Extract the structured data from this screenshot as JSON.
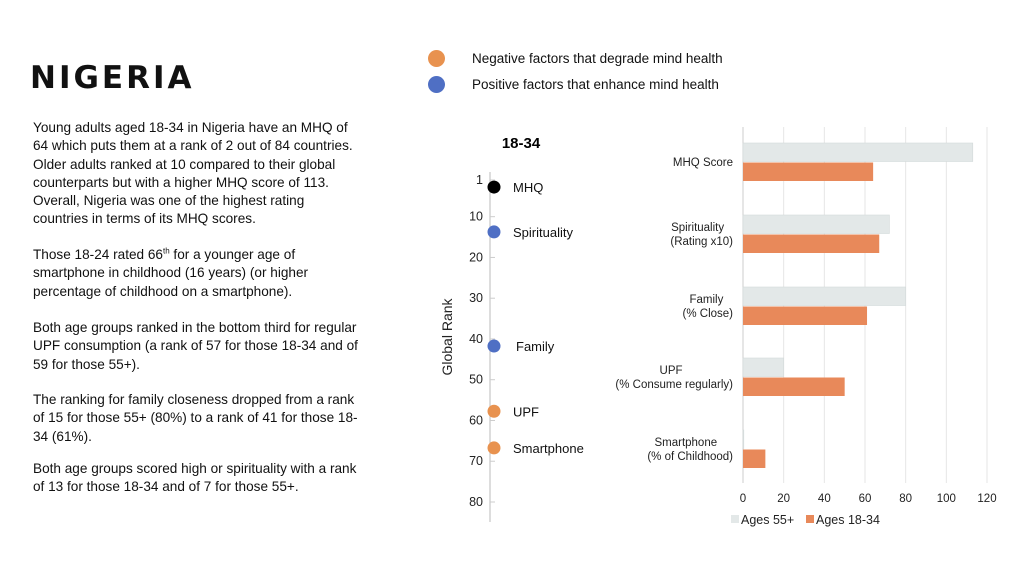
{
  "title": "NIGERIA",
  "paragraphs": [
    {
      "lines": [
        "Young adults aged 18-34 in Nigeria have an MHQ of",
        "64 which puts them at a rank of 2 out of 84 countries.",
        "Older adults ranked at 10 compared to their global",
        "counterparts but with a higher MHQ score of 113.",
        "Overall, Nigeria was one of the highest rating",
        "countries in terms of its MHQ scores."
      ]
    },
    {
      "first_pre": "Those 18-24 rated 66",
      "first_sup": "th",
      "first_post": " for a younger age of",
      "lines": [
        "smartphone in childhood (16 years) (or higher",
        "percentage of childhood on a smartphone)."
      ]
    },
    {
      "lines": [
        "Both age groups ranked in the bottom third for regular",
        "UPF consumption (a rank of 57 for those 18-34 and of",
        "59 for those 55+)."
      ]
    },
    {
      "lines": [
        "The ranking for family closeness dropped from a rank",
        "of 15 for those 55+ (80%) to a rank of 41 for those 18-",
        "34 (61%)."
      ]
    },
    {
      "lines": [
        "Both age groups scored high or spirituality with a rank",
        "of 13 for those 18-34 and of 7 for those 55+."
      ]
    }
  ],
  "legend_top": [
    {
      "label": "Negative factors that degrade mind health",
      "color": "#E8924F"
    },
    {
      "label": "Positive factors that enhance mind health",
      "color": "#4F6FC4"
    }
  ],
  "chart_data": [
    {
      "type": "scatter",
      "title": "18-34",
      "ylabel": "Global Rank",
      "yticks": [
        1,
        10,
        20,
        30,
        40,
        50,
        60,
        70,
        80
      ],
      "ylim": [
        1,
        80
      ],
      "y_inverted": true,
      "points": [
        {
          "label": "MHQ",
          "rank": 2,
          "color": "#000000"
        },
        {
          "label": "Spirituality",
          "rank": 13,
          "color": "#4F6FC4"
        },
        {
          "label": "Family",
          "rank": 41,
          "color": "#4F6FC4"
        },
        {
          "label": "UPF",
          "rank": 57,
          "color": "#E8924F"
        },
        {
          "label": "Smartphone",
          "rank": 66,
          "color": "#E8924F"
        }
      ]
    },
    {
      "type": "bar",
      "orientation": "horizontal",
      "categories": [
        [
          "MHQ Score"
        ],
        [
          "Spirituality",
          "(Rating x10)"
        ],
        [
          "Family",
          "(% Close)"
        ],
        [
          "UPF",
          "(% Consume regularly)"
        ],
        [
          "Smartphone",
          "(% of Childhood)"
        ]
      ],
      "xticks": [
        0,
        20,
        40,
        60,
        80,
        100,
        120
      ],
      "xlim": [
        0,
        120
      ],
      "grid": true,
      "legend": "bottom",
      "series": [
        {
          "name": "Ages 55+",
          "color": "#E3E8E8",
          "values": [
            113,
            72,
            80,
            20,
            0
          ]
        },
        {
          "name": "Ages 18-34",
          "color": "#E8895A",
          "values": [
            64,
            67,
            61,
            50,
            11
          ]
        }
      ]
    }
  ]
}
